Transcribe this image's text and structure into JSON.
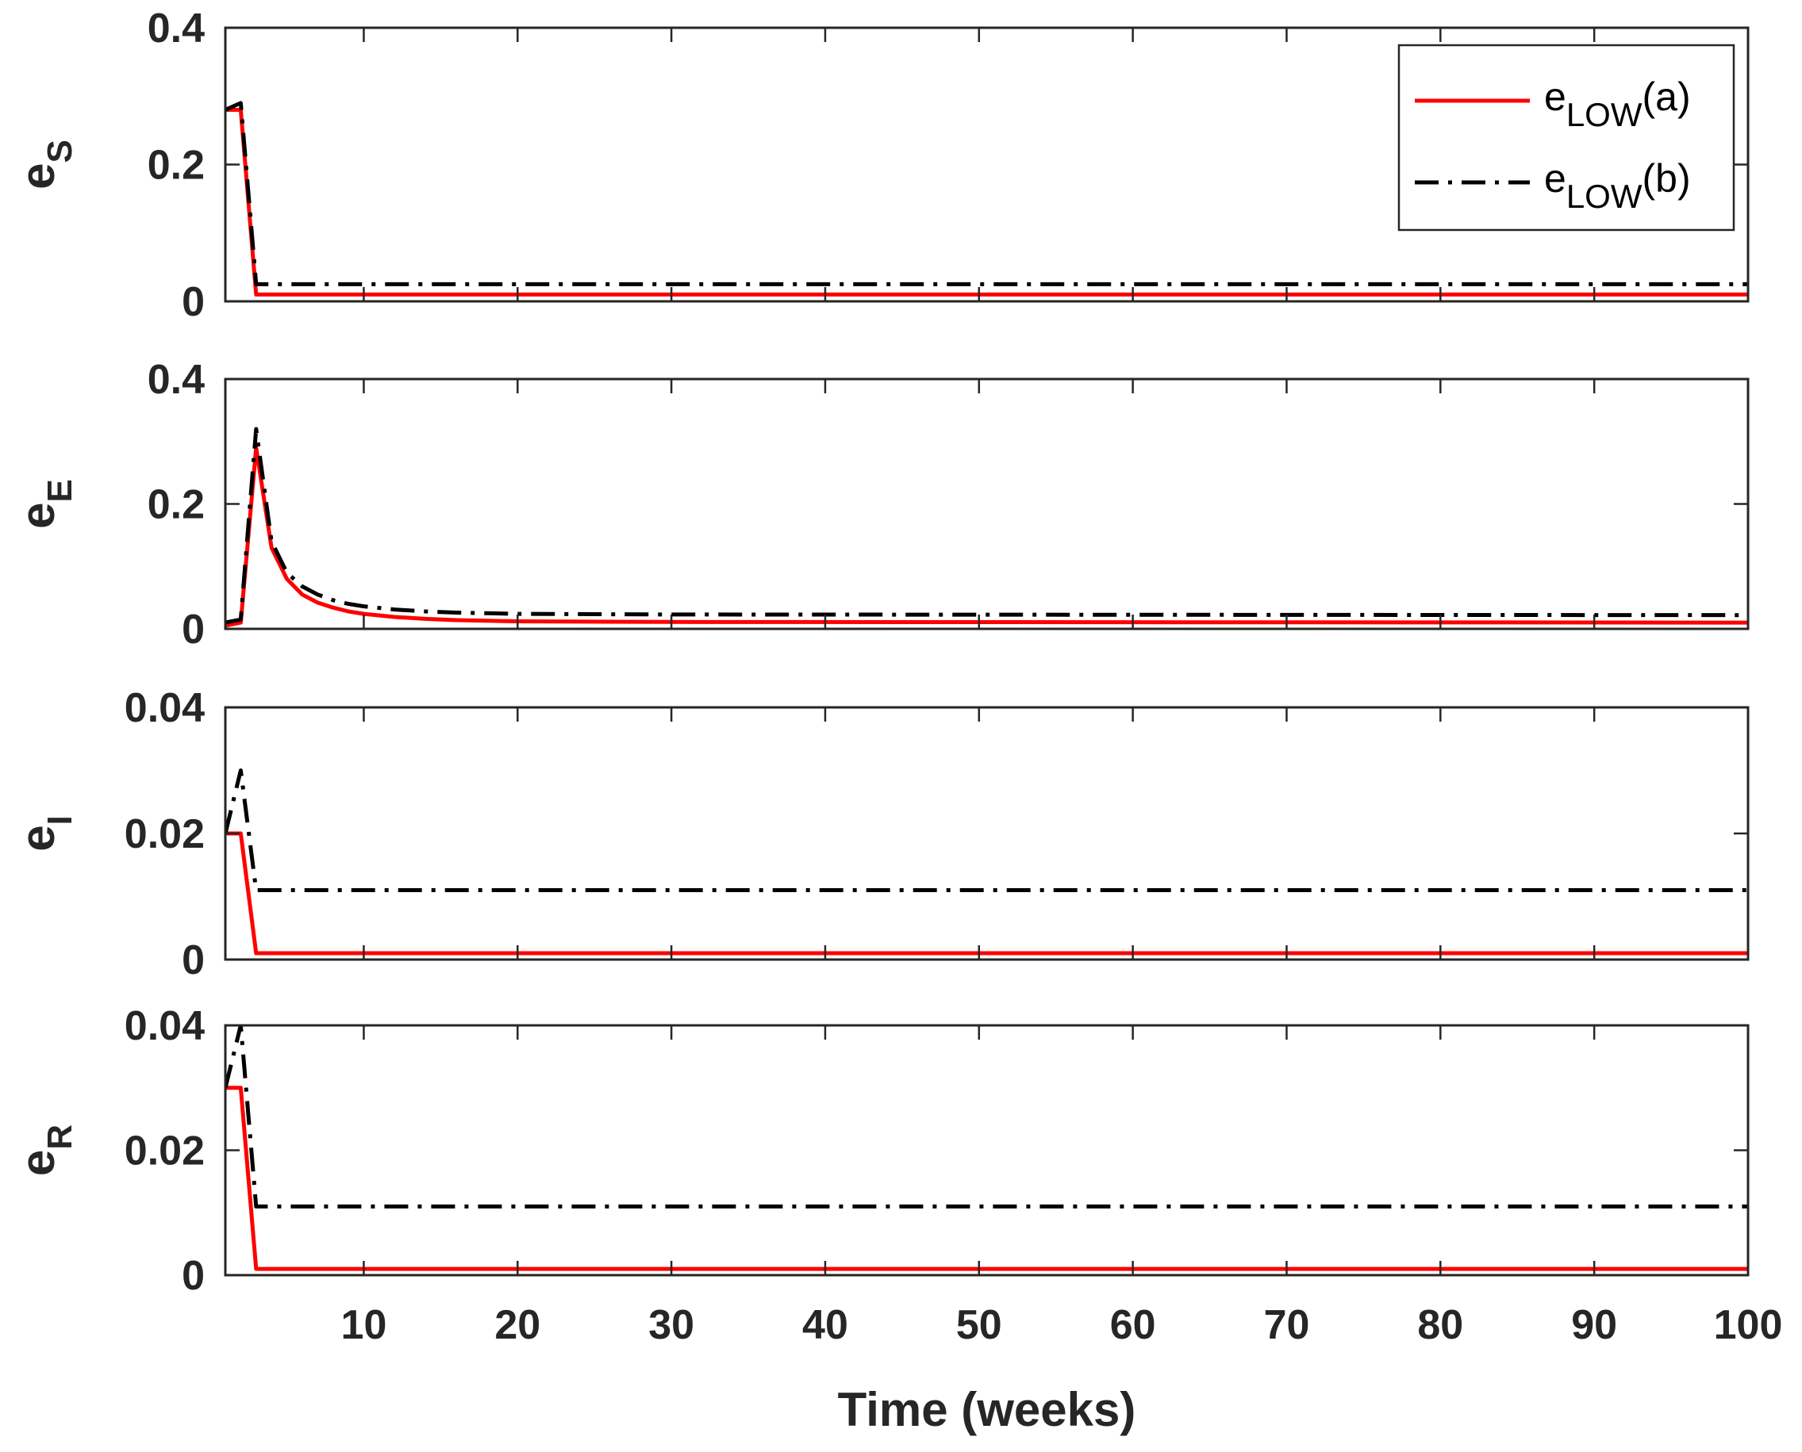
{
  "chart_data": [
    {
      "type": "line",
      "ylabel_main": "e",
      "ylabel_sub": "S",
      "xlim": [
        1,
        100
      ],
      "ylim": [
        0,
        0.4
      ],
      "yticks": [
        "0",
        "0.2",
        "0.4"
      ],
      "series": [
        {
          "name_main": "e",
          "name_sub": "LOW",
          "name_suffix": "(a)",
          "style": "solid",
          "color": "#ff0000",
          "points": [
            [
              1,
              0.28
            ],
            [
              2,
              0.28
            ],
            [
              3,
              0.01
            ],
            [
              100,
              0.01
            ]
          ]
        },
        {
          "name_main": "e",
          "name_sub": "LOW",
          "name_suffix": "(b)",
          "style": "dashdot",
          "color": "#000000",
          "points": [
            [
              1,
              0.28
            ],
            [
              2,
              0.29
            ],
            [
              3,
              0.025
            ],
            [
              100,
              0.025
            ]
          ]
        }
      ],
      "legend": "top-right"
    },
    {
      "type": "line",
      "ylabel_main": "e",
      "ylabel_sub": "E",
      "xlim": [
        1,
        100
      ],
      "ylim": [
        0,
        0.4
      ],
      "yticks": [
        "0",
        "0.2",
        "0.4"
      ],
      "series": [
        {
          "style": "solid",
          "color": "#ff0000",
          "points": [
            [
              1,
              0.005
            ],
            [
              2,
              0.01
            ],
            [
              3,
              0.29
            ],
            [
              4,
              0.13
            ],
            [
              5,
              0.08
            ],
            [
              6,
              0.055
            ],
            [
              7,
              0.042
            ],
            [
              8,
              0.034
            ],
            [
              9,
              0.028
            ],
            [
              10,
              0.024
            ],
            [
              12,
              0.019
            ],
            [
              14,
              0.016
            ],
            [
              16,
              0.014
            ],
            [
              18,
              0.013
            ],
            [
              20,
              0.012
            ],
            [
              30,
              0.011
            ],
            [
              100,
              0.01
            ]
          ]
        },
        {
          "style": "dashdot",
          "color": "#000000",
          "points": [
            [
              1,
              0.01
            ],
            [
              2,
              0.015
            ],
            [
              3,
              0.32
            ],
            [
              4,
              0.14
            ],
            [
              5,
              0.09
            ],
            [
              6,
              0.068
            ],
            [
              7,
              0.055
            ],
            [
              8,
              0.046
            ],
            [
              9,
              0.04
            ],
            [
              10,
              0.036
            ],
            [
              12,
              0.031
            ],
            [
              14,
              0.028
            ],
            [
              16,
              0.026
            ],
            [
              18,
              0.025
            ],
            [
              20,
              0.024
            ],
            [
              30,
              0.023
            ],
            [
              100,
              0.022
            ]
          ]
        }
      ]
    },
    {
      "type": "line",
      "ylabel_main": "e",
      "ylabel_sub": "I",
      "xlim": [
        1,
        100
      ],
      "ylim": [
        0,
        0.04
      ],
      "yticks": [
        "0",
        "0.02",
        "0.04"
      ],
      "series": [
        {
          "style": "solid",
          "color": "#ff0000",
          "points": [
            [
              1,
              0.02
            ],
            [
              2,
              0.02
            ],
            [
              3,
              0.001
            ],
            [
              100,
              0.001
            ]
          ]
        },
        {
          "style": "dashdot",
          "color": "#000000",
          "points": [
            [
              1,
              0.02
            ],
            [
              2,
              0.03
            ],
            [
              3,
              0.011
            ],
            [
              100,
              0.011
            ]
          ]
        }
      ]
    },
    {
      "type": "line",
      "ylabel_main": "e",
      "ylabel_sub": "R",
      "xlim": [
        1,
        100
      ],
      "ylim": [
        0,
        0.04
      ],
      "yticks": [
        "0",
        "0.02",
        "0.04"
      ],
      "xticks": [
        10,
        20,
        30,
        40,
        50,
        60,
        70,
        80,
        90,
        100
      ],
      "xlabel": "Time (weeks)",
      "series": [
        {
          "style": "solid",
          "color": "#ff0000",
          "points": [
            [
              1,
              0.03
            ],
            [
              2,
              0.03
            ],
            [
              3,
              0.001
            ],
            [
              100,
              0.001
            ]
          ]
        },
        {
          "style": "dashdot",
          "color": "#000000",
          "points": [
            [
              1,
              0.03
            ],
            [
              2,
              0.04
            ],
            [
              3,
              0.011
            ],
            [
              100,
              0.011
            ]
          ]
        }
      ]
    }
  ]
}
